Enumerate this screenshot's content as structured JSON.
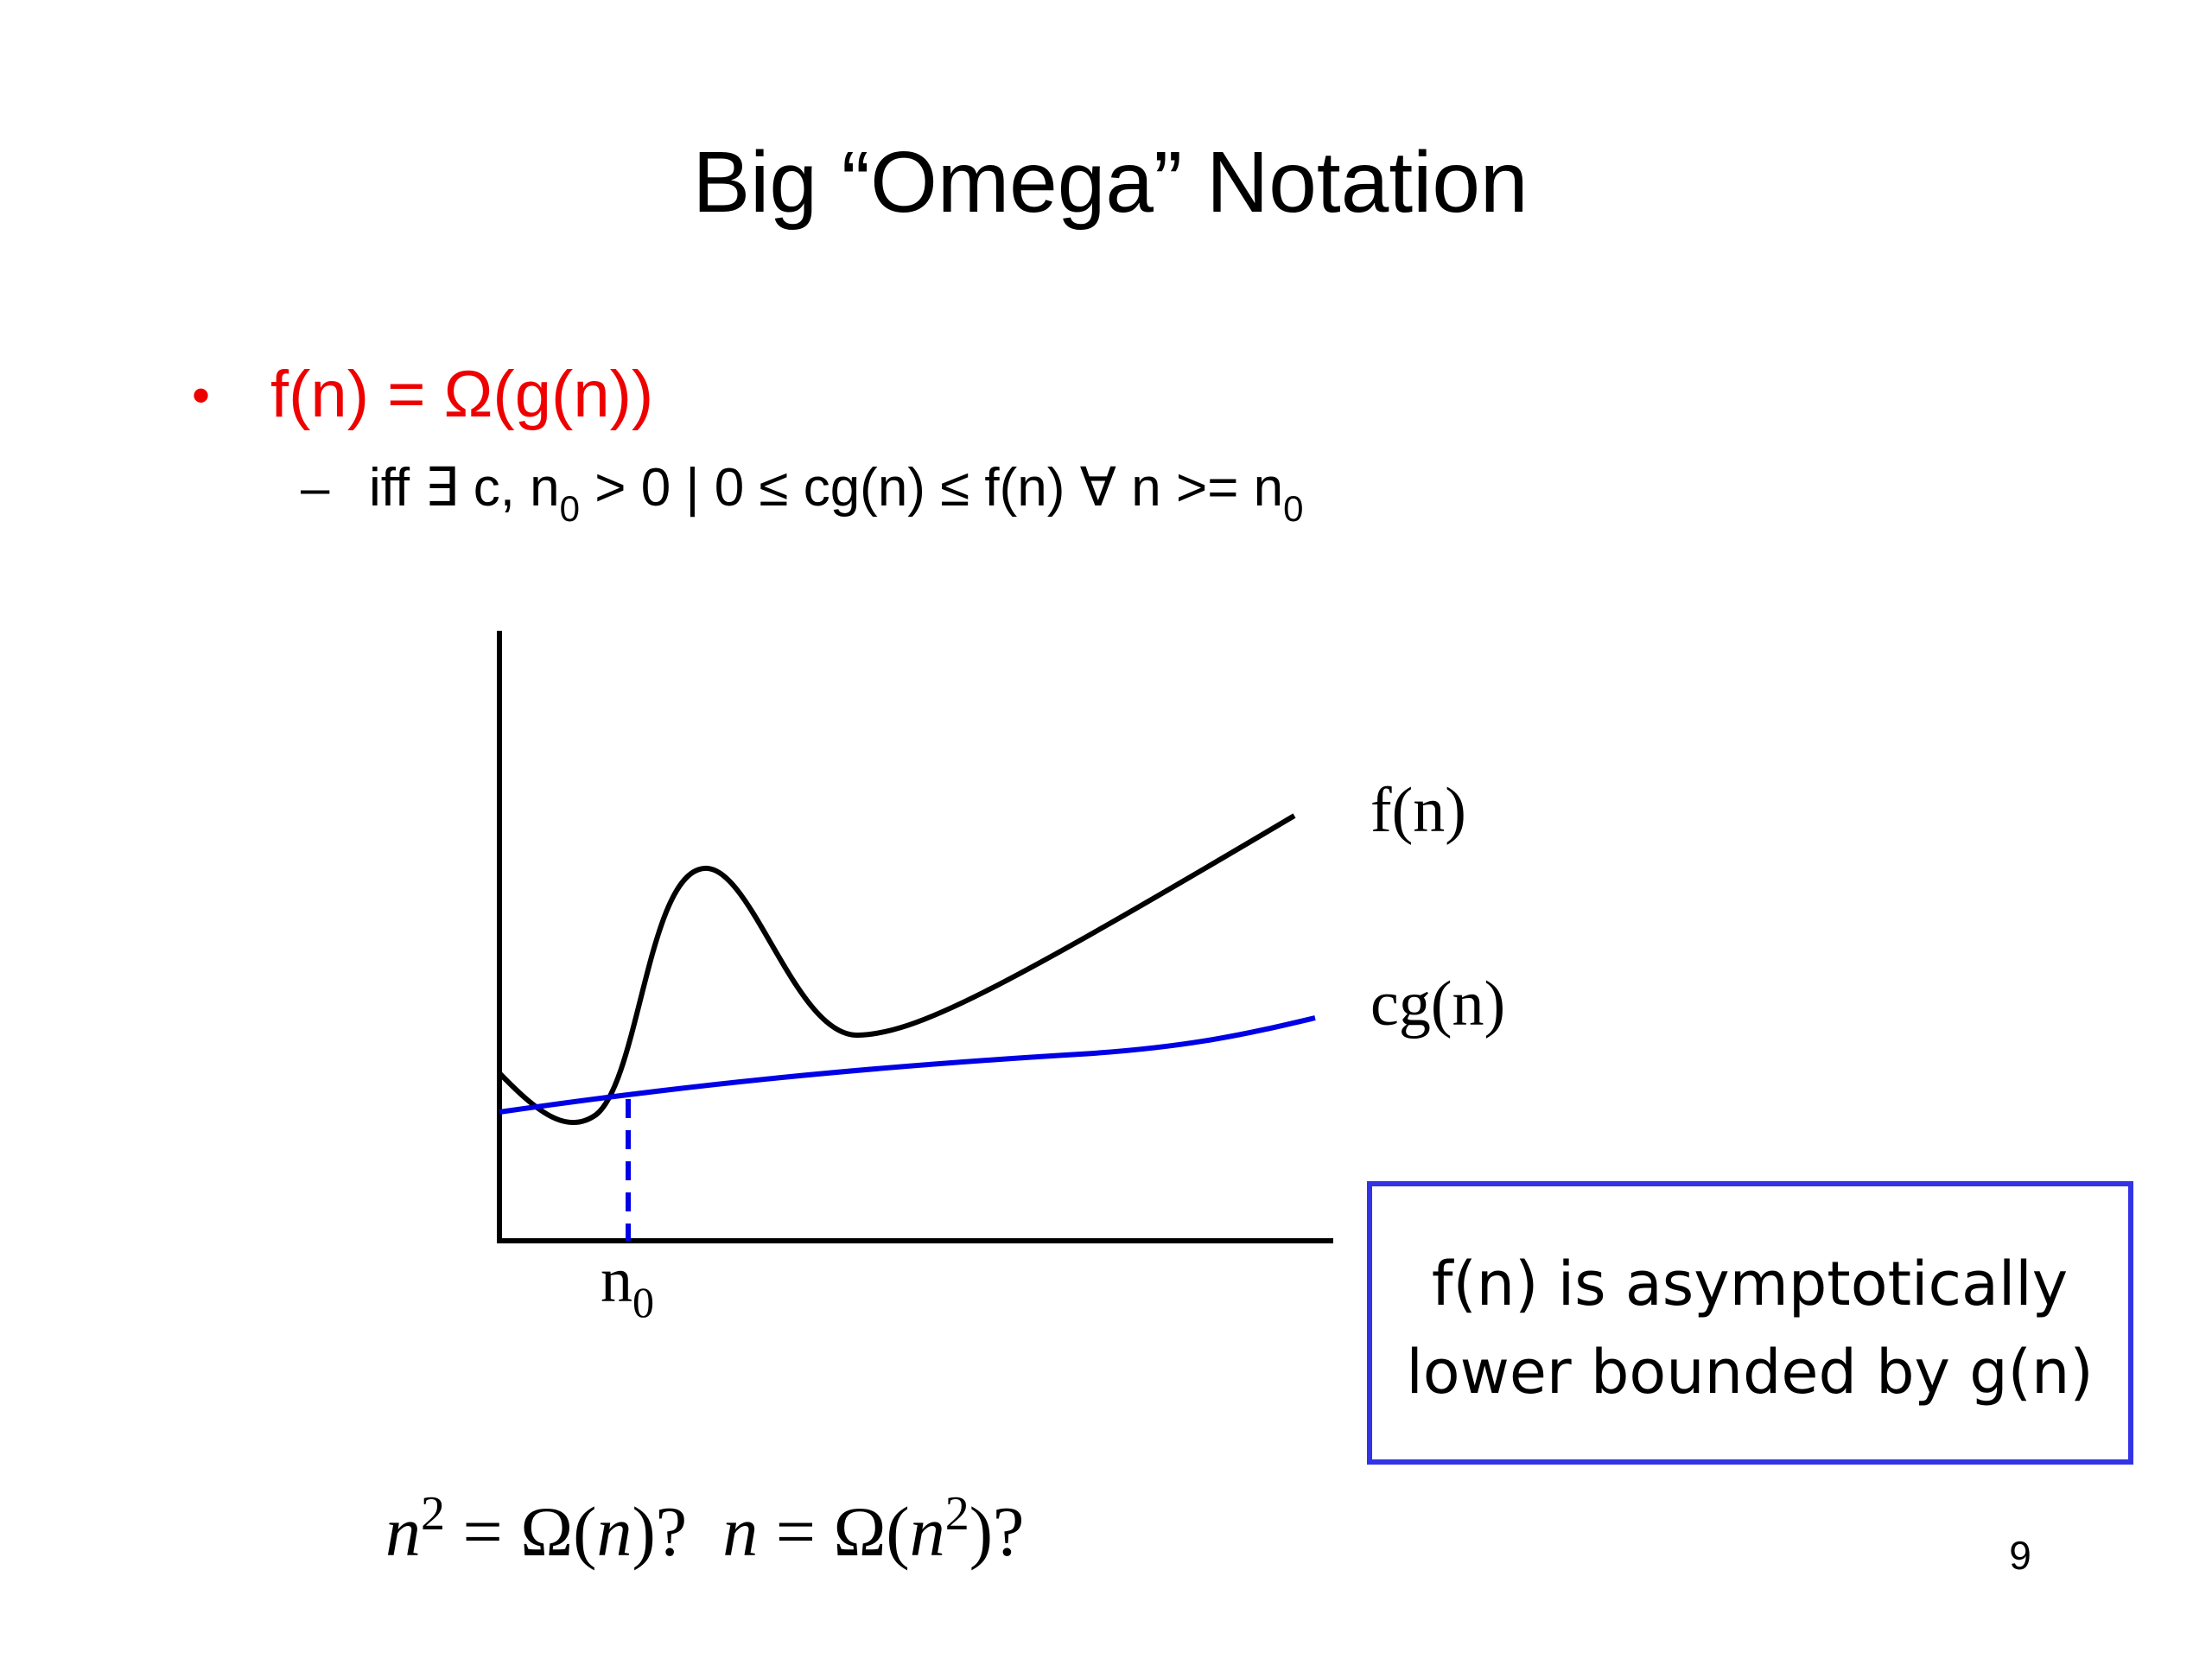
{
  "title": "Big “Omega” Notation",
  "bullet": {
    "marker": "•",
    "text": "f(n) = Ω(g(n))"
  },
  "sub_bullet": {
    "marker": "–",
    "parts": [
      "iff ∃ c, n",
      "0",
      " > 0 | 0 ≤ cg(n) ≤ f(n) ∀ n >= n",
      "0"
    ]
  },
  "diagram": {
    "f_label": "f(n)",
    "cg_label": "cg(n)",
    "n0_label": [
      "n",
      "0"
    ]
  },
  "note_box": {
    "lines": [
      "f(n) is asymptotically",
      "lower bounded by g(n)"
    ]
  },
  "question": {
    "parts": [
      "n",
      "2",
      " = Ω(",
      "n",
      ")?  ",
      "n",
      " = Ω(",
      "n",
      "2",
      ")?"
    ]
  },
  "page_number": "9"
}
